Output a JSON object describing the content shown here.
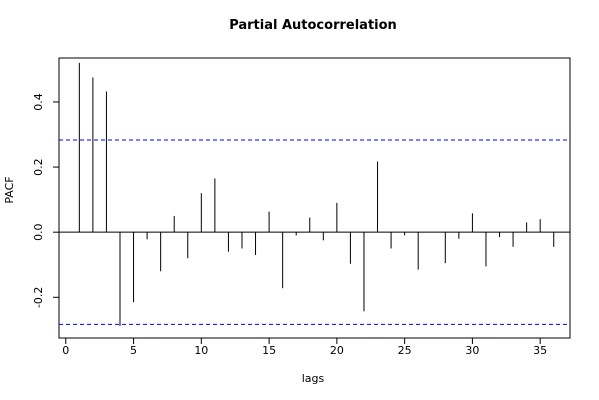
{
  "chart_data": {
    "type": "bar",
    "title": "Partial Autocorrelation",
    "xlabel": "lags",
    "ylabel": "PACF",
    "xlim": [
      -0.5,
      37.2
    ],
    "ylim": [
      -0.325,
      0.535
    ],
    "x_ticks": [
      0,
      5,
      10,
      15,
      20,
      25,
      30,
      35
    ],
    "y_ticks": [
      -0.2,
      0.0,
      0.2,
      0.4
    ],
    "y_tick_labels": [
      "-0.2",
      "0.0",
      "0.2",
      "0.4"
    ],
    "confidence_bounds": [
      0.283,
      -0.283
    ],
    "grid": false,
    "series": [
      {
        "lags": [
          1,
          2,
          3,
          4,
          5,
          6,
          7,
          8,
          9,
          10,
          11,
          12,
          13,
          14,
          15,
          16,
          17,
          18,
          19,
          20,
          21,
          22,
          23,
          24,
          25,
          26,
          27,
          28,
          29,
          30,
          31,
          32,
          33,
          34,
          35,
          36
        ],
        "values": [
          0.52,
          0.475,
          0.432,
          -0.288,
          -0.215,
          -0.022,
          -0.12,
          0.05,
          -0.08,
          0.12,
          0.165,
          -0.06,
          -0.05,
          -0.07,
          0.063,
          -0.172,
          -0.01,
          0.045,
          -0.025,
          0.09,
          -0.097,
          -0.243,
          0.217,
          -0.05,
          -0.01,
          -0.115,
          0.0,
          -0.095,
          -0.02,
          0.058,
          -0.105,
          -0.015,
          -0.045,
          0.03,
          0.04,
          -0.045
        ]
      }
    ],
    "colors": {
      "bars": "#000000",
      "bounds": "#0000ff",
      "zero_line": "#000000",
      "frame": "#000000"
    }
  }
}
